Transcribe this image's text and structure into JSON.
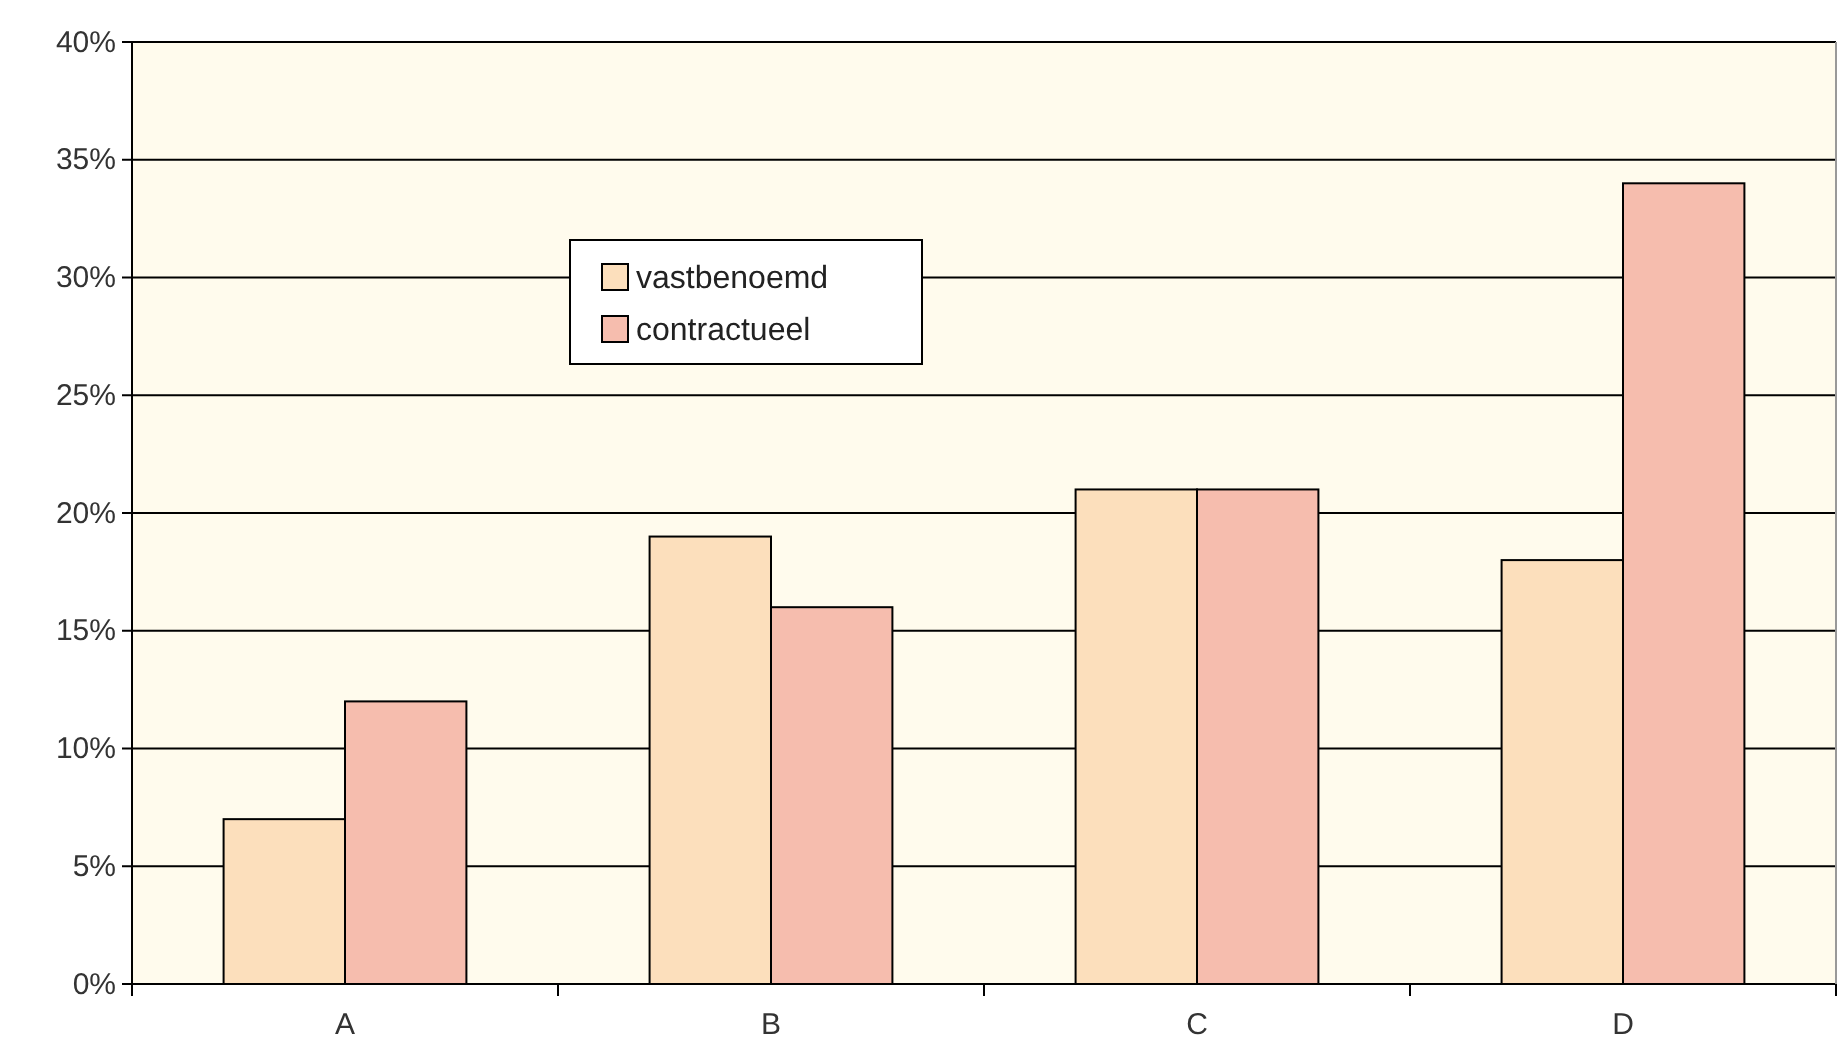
{
  "chart_data": {
    "type": "bar",
    "categories": [
      "A",
      "B",
      "C",
      "D"
    ],
    "series": [
      {
        "name": "vastbenoemd",
        "color": "#fcdfbc",
        "values": [
          7,
          19,
          21,
          18
        ]
      },
      {
        "name": "contractueel",
        "color": "#f6bdae",
        "values": [
          12,
          16,
          21,
          34
        ]
      }
    ],
    "ylim": [
      0,
      40
    ],
    "yticks": [
      {
        "value": 0,
        "label": "0%"
      },
      {
        "value": 5,
        "label": "5%"
      },
      {
        "value": 10,
        "label": "10%"
      },
      {
        "value": 15,
        "label": "15%"
      },
      {
        "value": 20,
        "label": "20%"
      },
      {
        "value": 25,
        "label": "25%"
      },
      {
        "value": 30,
        "label": "30%"
      },
      {
        "value": 35,
        "label": "35%"
      },
      {
        "value": 40,
        "label": "40%"
      }
    ],
    "grid": "y",
    "legend": "top left"
  }
}
